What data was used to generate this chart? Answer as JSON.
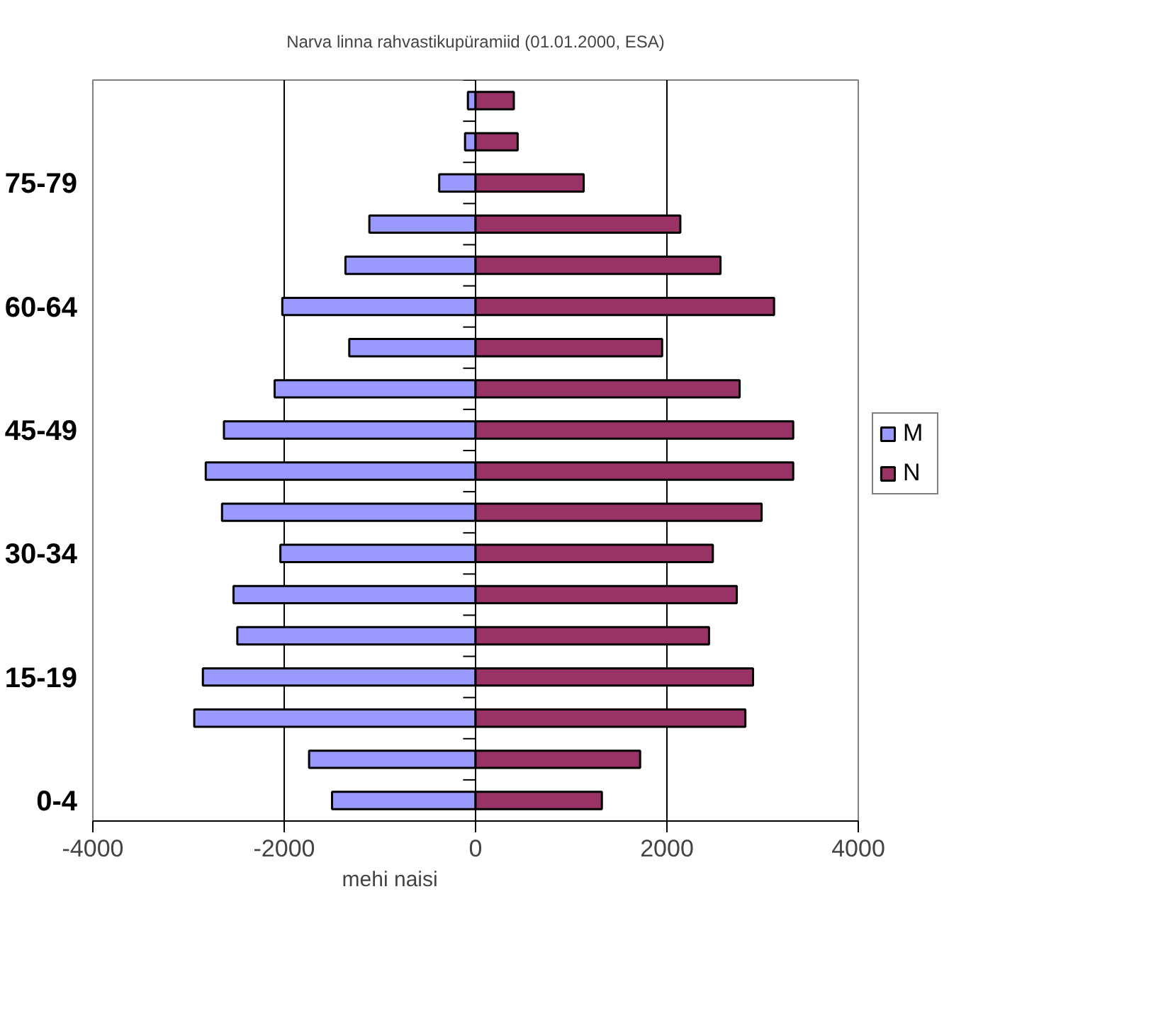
{
  "chart_data": {
    "type": "bar",
    "orientation": "horizontal",
    "title": "Narva linna rahvastikupüramiid (01.01.2000, ESA)",
    "xlabel": "mehi                              naisi",
    "categories": [
      null,
      null,
      "75-79",
      null,
      null,
      "60-64",
      null,
      null,
      "45-49",
      null,
      null,
      "30-34",
      null,
      null,
      "15-19",
      null,
      null,
      "0-4"
    ],
    "series": [
      {
        "name": "M",
        "color": "#9999ff",
        "values": [
          -80,
          -110,
          -380,
          -1110,
          -1360,
          -2020,
          -1320,
          -2100,
          -2630,
          -2820,
          -2650,
          -2040,
          -2530,
          -2490,
          -2850,
          -2940,
          -1740,
          -1500
        ]
      },
      {
        "name": "N",
        "color": "#993366",
        "values": [
          400,
          440,
          1130,
          2140,
          2560,
          3120,
          1950,
          2760,
          3320,
          3320,
          2990,
          2480,
          2730,
          2440,
          2900,
          2820,
          1720,
          1320
        ]
      }
    ],
    "xlim": [
      -4000,
      4000
    ],
    "xticks": [
      -4000,
      -2000,
      0,
      2000,
      4000
    ],
    "grid": "x",
    "legend": "right",
    "stacked": true
  }
}
